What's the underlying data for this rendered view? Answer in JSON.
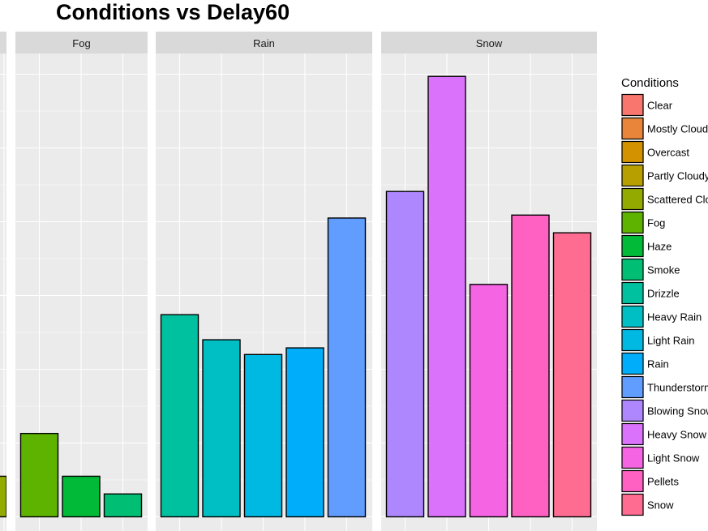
{
  "chart_data": {
    "type": "bar",
    "title": "Conditions vs Delay60",
    "xlabel": "",
    "ylabel": "",
    "ylim": [
      0,
      6
    ],
    "grid": true,
    "legend_position": "right",
    "legend_title": "Conditions",
    "legend": [
      {
        "label": "Clear",
        "color": "#F8766D"
      },
      {
        "label": "Mostly Cloudy",
        "color": "#E8853A"
      },
      {
        "label": "Overcast",
        "color": "#D39200"
      },
      {
        "label": "Partly Cloudy",
        "color": "#B79F00"
      },
      {
        "label": "Scattered Clouds",
        "color": "#93AA00"
      },
      {
        "label": "Fog",
        "color": "#5EB300"
      },
      {
        "label": "Haze",
        "color": "#00BA38"
      },
      {
        "label": "Smoke",
        "color": "#00BF74"
      },
      {
        "label": "Drizzle",
        "color": "#00C19F"
      },
      {
        "label": "Heavy Rain",
        "color": "#00BFC4"
      },
      {
        "label": "Light Rain",
        "color": "#00B9E3"
      },
      {
        "label": "Rain",
        "color": "#00ADFA"
      },
      {
        "label": "Thunderstorm",
        "color": "#619CFF"
      },
      {
        "label": "Blowing Snow",
        "color": "#AE87FF"
      },
      {
        "label": "Heavy Snow",
        "color": "#DB72FB"
      },
      {
        "label": "Light Snow",
        "color": "#F564E3"
      },
      {
        "label": "Pellets",
        "color": "#FF61C3"
      },
      {
        "label": "Snow",
        "color": "#FF6C91"
      }
    ],
    "panels": [
      {
        "name": "",
        "bars": [
          {
            "category": "Scattered Clouds",
            "value": 0.55,
            "color": "#93AA00"
          }
        ]
      },
      {
        "name": "Fog",
        "bars": [
          {
            "category": "Fog",
            "value": 1.13,
            "color": "#5EB300"
          },
          {
            "category": "Haze",
            "value": 0.55,
            "color": "#00BA38"
          },
          {
            "category": "Smoke",
            "value": 0.31,
            "color": "#00BF74"
          }
        ]
      },
      {
        "name": "Rain",
        "bars": [
          {
            "category": "Drizzle",
            "value": 2.74,
            "color": "#00C19F"
          },
          {
            "category": "Heavy Rain",
            "value": 2.4,
            "color": "#00BFC4"
          },
          {
            "category": "Light Rain",
            "value": 2.2,
            "color": "#00B9E3"
          },
          {
            "category": "Rain",
            "value": 2.29,
            "color": "#00ADFA"
          },
          {
            "category": "Thunderstorm",
            "value": 4.05,
            "color": "#619CFF"
          }
        ]
      },
      {
        "name": "Snow",
        "bars": [
          {
            "category": "Blowing Snow",
            "value": 4.41,
            "color": "#AE87FF"
          },
          {
            "category": "Heavy Snow",
            "value": 5.97,
            "color": "#DB72FB"
          },
          {
            "category": "Light Snow",
            "value": 3.15,
            "color": "#F564E3"
          },
          {
            "category": "Pellets",
            "value": 4.09,
            "color": "#FF61C3"
          },
          {
            "category": "Snow",
            "value": 3.85,
            "color": "#FF6C91"
          }
        ]
      }
    ]
  }
}
